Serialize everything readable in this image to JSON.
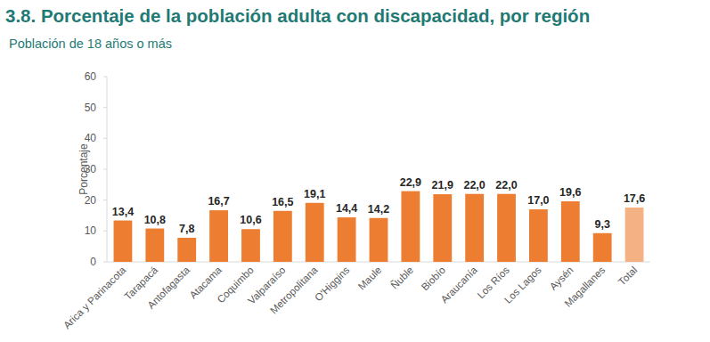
{
  "chart_data": {
    "type": "bar",
    "title": "3.8. Porcentaje de la población adulta con discapacidad, por región",
    "subtitle": "Población de 18 años o más",
    "y_label": "Porcentaje",
    "categories": [
      "Arica y Parinacota",
      "Tarapacá",
      "Antofagasta",
      "Atacama",
      "Coquimbo",
      "Valparaíso",
      "Metropolitana",
      "O'Higgins",
      "Maule",
      "Ñuble",
      "Biobío",
      "Araucanía",
      "Los Ríos",
      "Los Lagos",
      "Aysén",
      "Magallanes",
      "Total"
    ],
    "values": [
      13.4,
      10.8,
      7.8,
      16.7,
      10.6,
      16.5,
      19.1,
      14.4,
      14.2,
      22.9,
      21.9,
      22.0,
      22.0,
      17.0,
      19.6,
      9.3,
      17.6
    ],
    "value_labels": [
      "13,4",
      "10,8",
      "7,8",
      "16,7",
      "10,6",
      "16,5",
      "19,1",
      "14,4",
      "14,2",
      "22,9",
      "21,9",
      "22,0",
      "22,0",
      "17,0",
      "19,6",
      "9,3",
      "17,6"
    ],
    "colors": [
      "#ed7d31",
      "#ed7d31",
      "#ed7d31",
      "#ed7d31",
      "#ed7d31",
      "#ed7d31",
      "#ed7d31",
      "#ed7d31",
      "#ed7d31",
      "#ed7d31",
      "#ed7d31",
      "#ed7d31",
      "#ed7d31",
      "#ed7d31",
      "#ed7d31",
      "#ed7d31",
      "#f4b183"
    ],
    "ylim": [
      0,
      60
    ],
    "yticks": [
      0,
      10,
      20,
      30,
      40,
      50,
      60
    ],
    "grid": false,
    "data_labels": true
  }
}
